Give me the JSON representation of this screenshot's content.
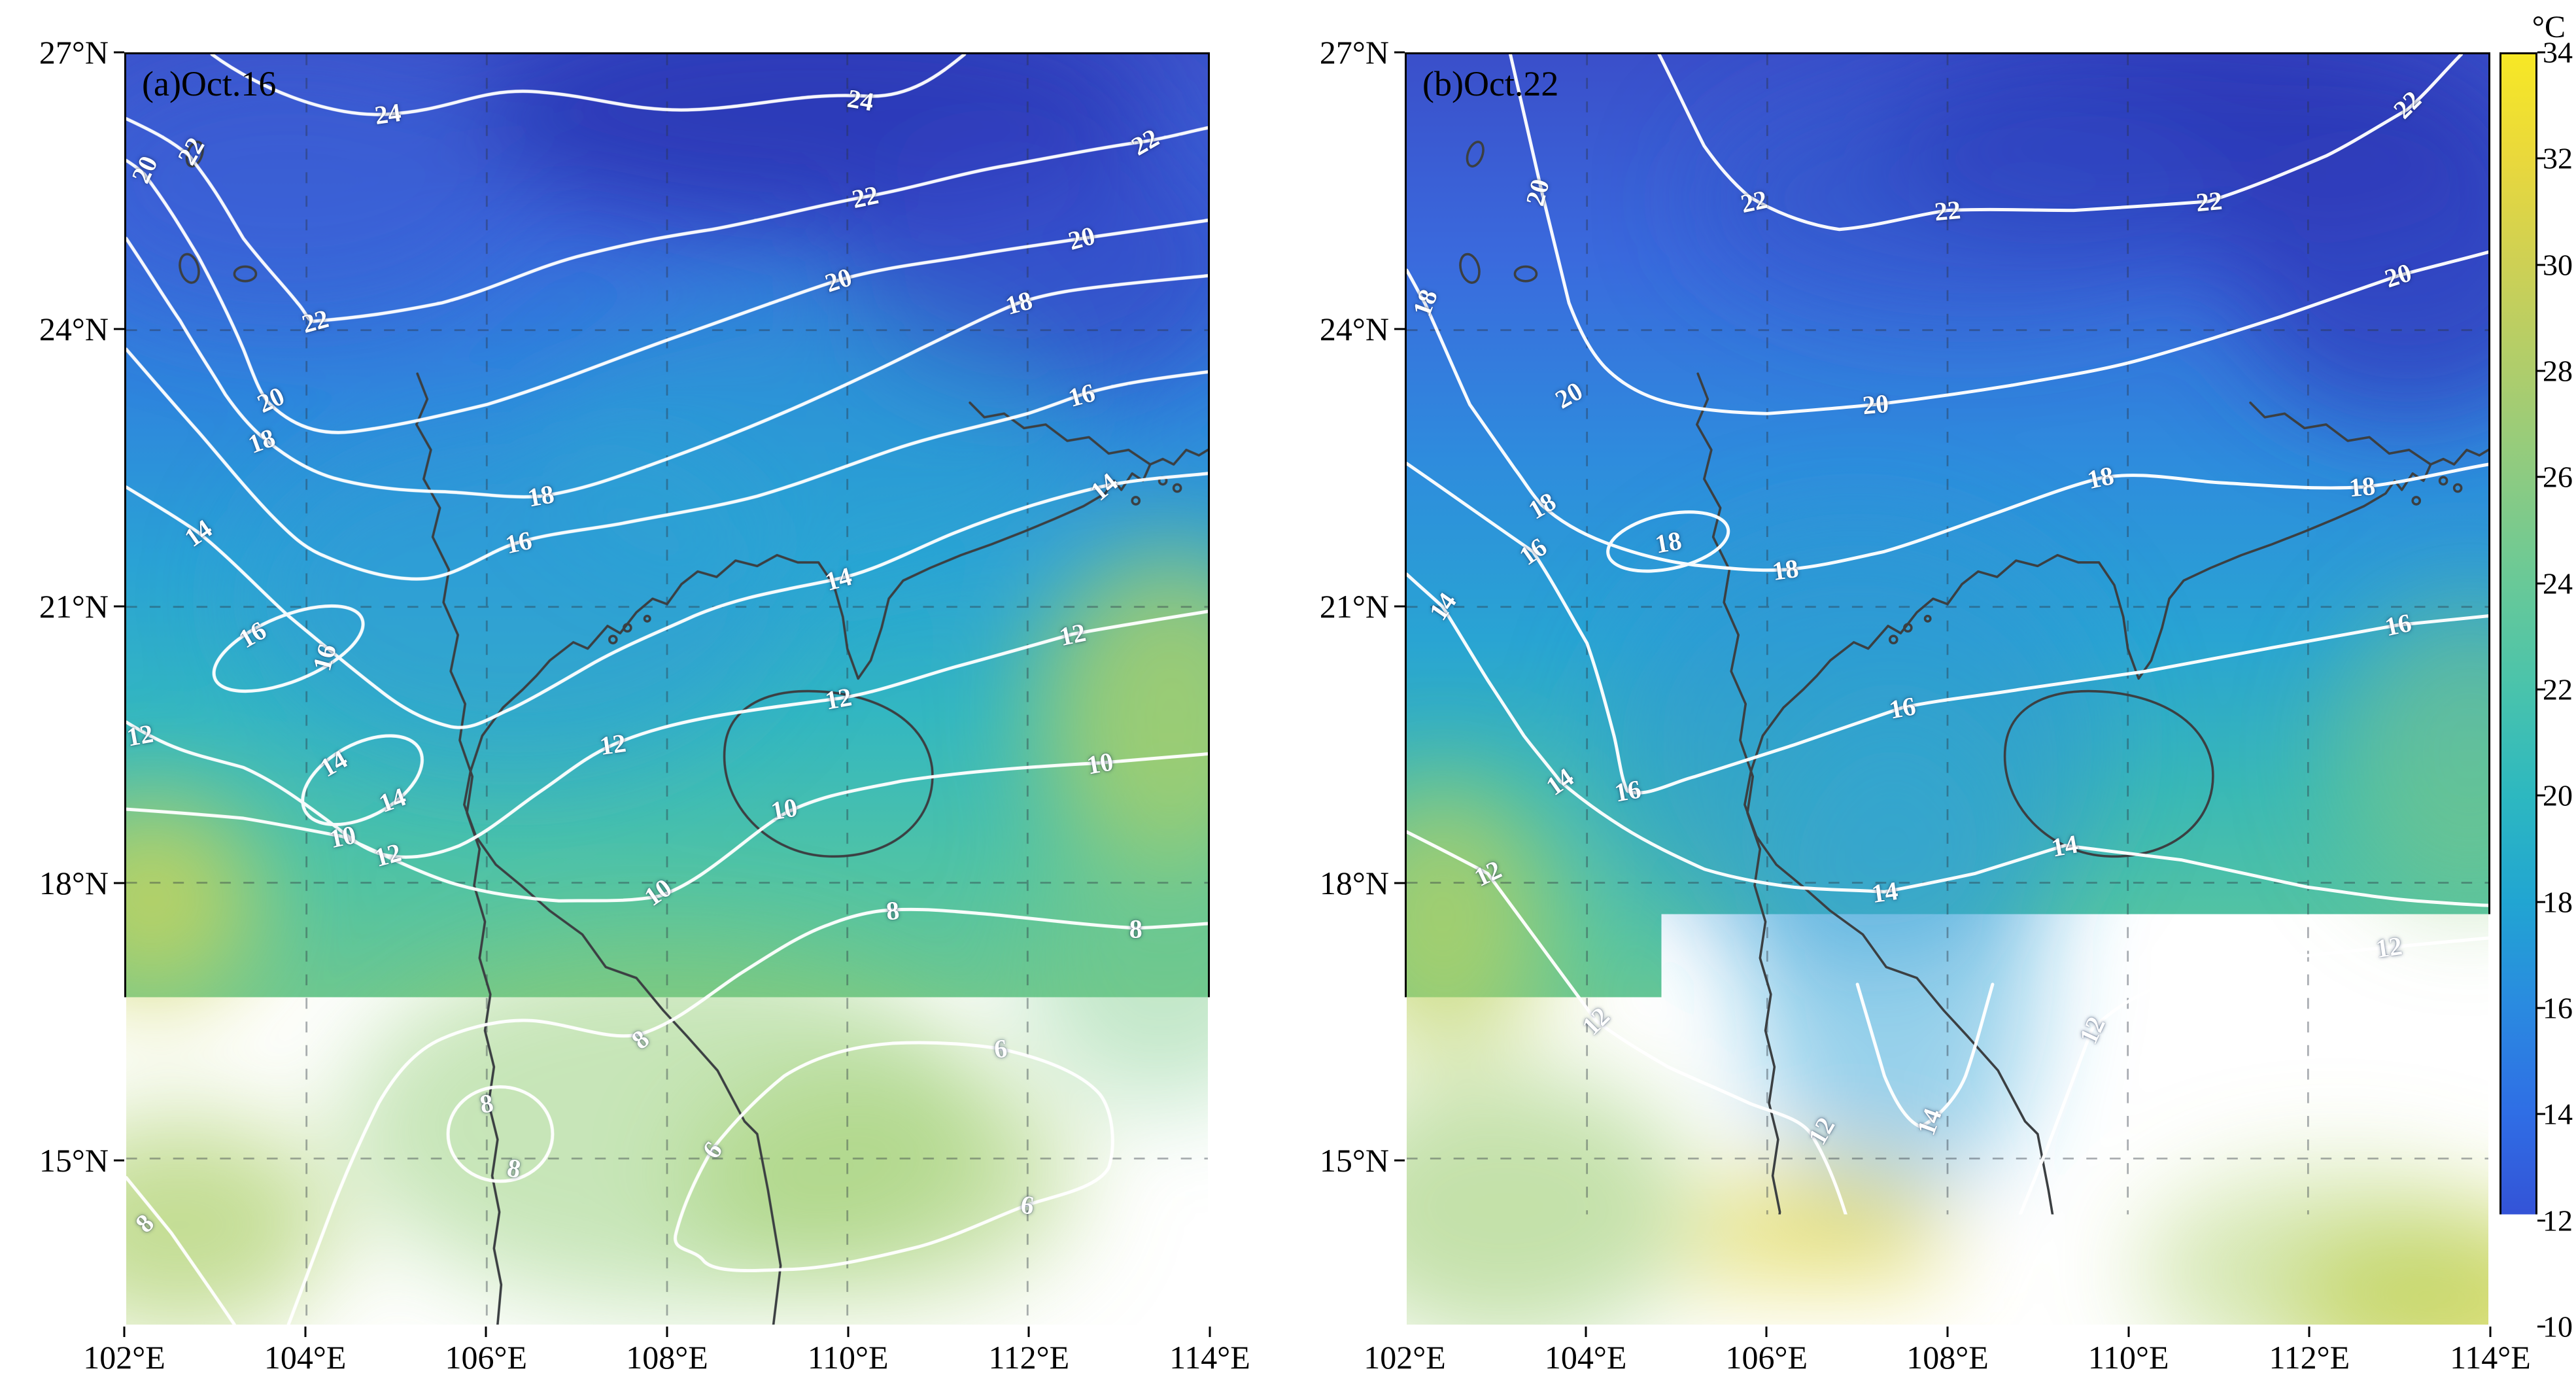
{
  "colorbar": {
    "title": "°C",
    "min": 10,
    "max": 34,
    "tick_values": [
      34,
      32,
      30,
      28,
      26,
      24,
      22,
      20,
      18,
      16,
      14,
      12,
      10
    ],
    "gradient_stops": [
      {
        "value": 10,
        "color": "#30279e"
      },
      {
        "value": 12,
        "color": "#3452d6"
      },
      {
        "value": 14,
        "color": "#2f6ee5"
      },
      {
        "value": 16,
        "color": "#2a8ae0"
      },
      {
        "value": 18,
        "color": "#21a5d2"
      },
      {
        "value": 20,
        "color": "#2db8c0"
      },
      {
        "value": 22,
        "color": "#49c3ac"
      },
      {
        "value": 24,
        "color": "#68c998"
      },
      {
        "value": 26,
        "color": "#8ccb82"
      },
      {
        "value": 28,
        "color": "#aecd6c"
      },
      {
        "value": 30,
        "color": "#cdd055"
      },
      {
        "value": 32,
        "color": "#e9d83c"
      },
      {
        "value": 34,
        "color": "#f7e825"
      }
    ]
  },
  "chart_data": [
    {
      "type": "heatmap",
      "panel": "a",
      "title": "(a)Oct.16",
      "units": "°C",
      "grid": "dashed",
      "x_range": [
        102,
        114
      ],
      "y_range": [
        13.2,
        27
      ],
      "x_ticks": [
        {
          "value": 102,
          "label": "102°E"
        },
        {
          "value": 104,
          "label": "104°E"
        },
        {
          "value": 106,
          "label": "106°E"
        },
        {
          "value": 108,
          "label": "108°E"
        },
        {
          "value": 110,
          "label": "110°E"
        },
        {
          "value": 112,
          "label": "112°E"
        },
        {
          "value": 114,
          "label": "114°E"
        }
      ],
      "y_ticks": [
        {
          "value": 27,
          "label": "27°N"
        },
        {
          "value": 24,
          "label": "24°N"
        },
        {
          "value": 21,
          "label": "21°N"
        },
        {
          "value": 18,
          "label": "18°N"
        },
        {
          "value": 15,
          "label": "15°N"
        }
      ],
      "contour_levels": [
        6,
        8,
        10,
        12,
        14,
        16,
        18,
        20,
        22,
        24
      ],
      "contour_labels": [
        {
          "value": 20,
          "lon": 102.2,
          "lat": 25.75,
          "rot": -65
        },
        {
          "value": 22,
          "lon": 102.72,
          "lat": 25.95,
          "rot": -60
        },
        {
          "value": 24,
          "lon": 104.9,
          "lat": 26.35,
          "rot": -8
        },
        {
          "value": 24,
          "lon": 110.15,
          "lat": 26.5,
          "rot": 10
        },
        {
          "value": 22,
          "lon": 104.1,
          "lat": 24.1,
          "rot": -15
        },
        {
          "value": 22,
          "lon": 110.2,
          "lat": 25.45,
          "rot": -12
        },
        {
          "value": 22,
          "lon": 113.3,
          "lat": 26.05,
          "rot": -30
        },
        {
          "value": 20,
          "lon": 109.9,
          "lat": 24.55,
          "rot": -18
        },
        {
          "value": 20,
          "lon": 112.6,
          "lat": 25.0,
          "rot": -15
        },
        {
          "value": 18,
          "lon": 111.9,
          "lat": 24.3,
          "rot": -15
        },
        {
          "value": 16,
          "lon": 112.6,
          "lat": 23.3,
          "rot": -15
        },
        {
          "value": 20,
          "lon": 103.6,
          "lat": 23.25,
          "rot": -25
        },
        {
          "value": 18,
          "lon": 103.5,
          "lat": 22.8,
          "rot": -20
        },
        {
          "value": 18,
          "lon": 106.6,
          "lat": 22.2,
          "rot": -10
        },
        {
          "value": 16,
          "lon": 106.35,
          "lat": 21.7,
          "rot": -12
        },
        {
          "value": 14,
          "lon": 109.9,
          "lat": 21.3,
          "rot": -15
        },
        {
          "value": 14,
          "lon": 112.85,
          "lat": 22.3,
          "rot": -40
        },
        {
          "value": 14,
          "lon": 102.8,
          "lat": 21.8,
          "rot": -35
        },
        {
          "value": 16,
          "lon": 103.4,
          "lat": 20.7,
          "rot": -30
        },
        {
          "value": 16,
          "lon": 104.2,
          "lat": 20.45,
          "rot": -75
        },
        {
          "value": 12,
          "lon": 102.15,
          "lat": 19.6,
          "rot": -10
        },
        {
          "value": 14,
          "lon": 104.3,
          "lat": 19.3,
          "rot": -30
        },
        {
          "value": 14,
          "lon": 104.95,
          "lat": 18.9,
          "rot": -20
        },
        {
          "value": 12,
          "lon": 107.4,
          "lat": 19.5,
          "rot": -8
        },
        {
          "value": 12,
          "lon": 109.9,
          "lat": 20.0,
          "rot": -10
        },
        {
          "value": 12,
          "lon": 112.5,
          "lat": 20.7,
          "rot": -12
        },
        {
          "value": 10,
          "lon": 104.4,
          "lat": 18.5,
          "rot": -12
        },
        {
          "value": 12,
          "lon": 104.9,
          "lat": 18.3,
          "rot": -15
        },
        {
          "value": 10,
          "lon": 109.3,
          "lat": 18.8,
          "rot": -10
        },
        {
          "value": 10,
          "lon": 107.9,
          "lat": 17.9,
          "rot": -35
        },
        {
          "value": 10,
          "lon": 112.8,
          "lat": 19.3,
          "rot": -10
        },
        {
          "value": 8,
          "lon": 110.5,
          "lat": 17.7,
          "rot": -5
        },
        {
          "value": 8,
          "lon": 113.2,
          "lat": 17.5,
          "rot": 0
        },
        {
          "value": 8,
          "lon": 107.7,
          "lat": 16.3,
          "rot": -40
        },
        {
          "value": 8,
          "lon": 106.0,
          "lat": 15.6,
          "rot": -10
        },
        {
          "value": 8,
          "lon": 106.3,
          "lat": 14.9,
          "rot": 10
        },
        {
          "value": 6,
          "lon": 111.7,
          "lat": 16.2,
          "rot": -5
        },
        {
          "value": 6,
          "lon": 108.5,
          "lat": 15.1,
          "rot": -55
        },
        {
          "value": 6,
          "lon": 112.0,
          "lat": 14.5,
          "rot": 8
        },
        {
          "value": 8,
          "lon": 102.2,
          "lat": 14.3,
          "rot": -45
        }
      ]
    },
    {
      "type": "heatmap",
      "panel": "b",
      "title": "(b)Oct.22",
      "units": "°C",
      "grid": "dashed",
      "x_range": [
        102,
        114
      ],
      "y_range": [
        13.2,
        27
      ],
      "x_ticks": [
        {
          "value": 102,
          "label": "102°E"
        },
        {
          "value": 104,
          "label": "104°E"
        },
        {
          "value": 106,
          "label": "106°E"
        },
        {
          "value": 108,
          "label": "108°E"
        },
        {
          "value": 110,
          "label": "110°E"
        },
        {
          "value": 112,
          "label": "112°E"
        },
        {
          "value": 114,
          "label": "114°E"
        }
      ],
      "y_ticks": [
        {
          "value": 27,
          "label": "27°N"
        },
        {
          "value": 24,
          "label": "24°N"
        },
        {
          "value": 21,
          "label": "21°N"
        },
        {
          "value": 18,
          "label": "18°N"
        },
        {
          "value": 15,
          "label": "15°N"
        }
      ],
      "contour_levels": [
        12,
        14,
        16,
        18,
        20,
        22
      ],
      "contour_labels": [
        {
          "value": 20,
          "lon": 103.45,
          "lat": 25.5,
          "rot": -75
        },
        {
          "value": 22,
          "lon": 105.85,
          "lat": 25.4,
          "rot": -12
        },
        {
          "value": 22,
          "lon": 108.0,
          "lat": 25.3,
          "rot": -5
        },
        {
          "value": 22,
          "lon": 110.9,
          "lat": 25.4,
          "rot": -5
        },
        {
          "value": 22,
          "lon": 113.1,
          "lat": 26.45,
          "rot": -45
        },
        {
          "value": 18,
          "lon": 102.2,
          "lat": 24.3,
          "rot": -70
        },
        {
          "value": 20,
          "lon": 103.8,
          "lat": 23.3,
          "rot": -30
        },
        {
          "value": 20,
          "lon": 107.2,
          "lat": 23.2,
          "rot": -5
        },
        {
          "value": 20,
          "lon": 113.0,
          "lat": 24.6,
          "rot": -18
        },
        {
          "value": 18,
          "lon": 103.5,
          "lat": 22.1,
          "rot": -30
        },
        {
          "value": 16,
          "lon": 103.4,
          "lat": 21.6,
          "rot": -35
        },
        {
          "value": 18,
          "lon": 104.9,
          "lat": 21.7,
          "rot": -10
        },
        {
          "value": 18,
          "lon": 106.2,
          "lat": 21.4,
          "rot": -8
        },
        {
          "value": 18,
          "lon": 109.7,
          "lat": 22.4,
          "rot": -12
        },
        {
          "value": 18,
          "lon": 112.6,
          "lat": 22.3,
          "rot": -5
        },
        {
          "value": 14,
          "lon": 102.4,
          "lat": 21.0,
          "rot": -55
        },
        {
          "value": 16,
          "lon": 107.5,
          "lat": 19.9,
          "rot": -10
        },
        {
          "value": 16,
          "lon": 113.0,
          "lat": 20.8,
          "rot": -12
        },
        {
          "value": 14,
          "lon": 103.7,
          "lat": 19.1,
          "rot": -35
        },
        {
          "value": 16,
          "lon": 104.45,
          "lat": 19.0,
          "rot": -10
        },
        {
          "value": 14,
          "lon": 107.3,
          "lat": 17.9,
          "rot": -8
        },
        {
          "value": 14,
          "lon": 109.3,
          "lat": 18.4,
          "rot": -10
        },
        {
          "value": 12,
          "lon": 102.9,
          "lat": 18.1,
          "rot": -25
        },
        {
          "value": 12,
          "lon": 104.1,
          "lat": 16.5,
          "rot": -45
        },
        {
          "value": 12,
          "lon": 106.6,
          "lat": 15.3,
          "rot": -60
        },
        {
          "value": 14,
          "lon": 107.8,
          "lat": 15.4,
          "rot": -70
        },
        {
          "value": 12,
          "lon": 108.6,
          "lat": 13.9,
          "rot": -60
        },
        {
          "value": 12,
          "lon": 109.6,
          "lat": 16.4,
          "rot": -65
        },
        {
          "value": 12,
          "lon": 112.9,
          "lat": 17.3,
          "rot": -8
        }
      ]
    }
  ]
}
